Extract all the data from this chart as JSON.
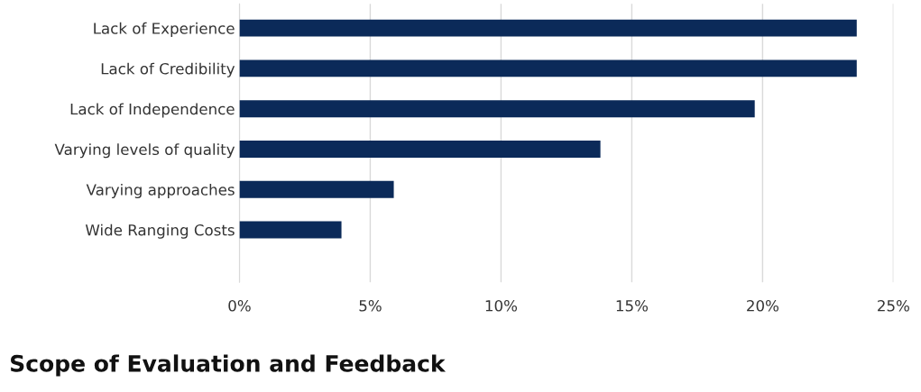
{
  "chart_data": {
    "type": "bar",
    "orientation": "horizontal",
    "categories": [
      "Lack of Experience",
      "Lack of Credibility",
      "Lack of Independence",
      "Varying levels of quality",
      "Varying approaches",
      "Wide Ranging Costs"
    ],
    "values": [
      23.6,
      23.6,
      19.7,
      13.8,
      5.9,
      3.9
    ],
    "color": "#0b2a59",
    "xlim": [
      0,
      25
    ],
    "xticks": [
      {
        "value": 0,
        "label": "0%"
      },
      {
        "value": 5,
        "label": "5%"
      },
      {
        "value": 10,
        "label": "10%"
      },
      {
        "value": 15,
        "label": "15%"
      },
      {
        "value": 20,
        "label": "20%"
      },
      {
        "value": 25,
        "label": "25%"
      }
    ],
    "grid": "x",
    "annotations": [
      "Scope of Evaluation and Feedback"
    ]
  }
}
